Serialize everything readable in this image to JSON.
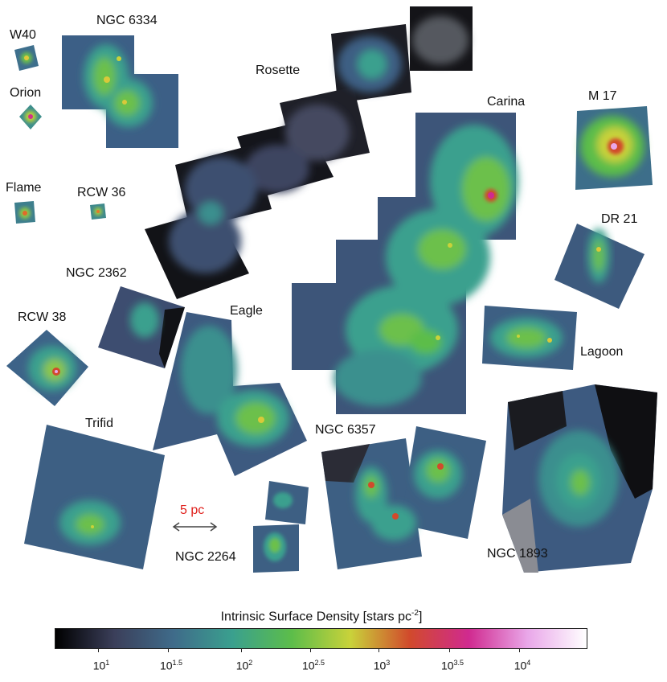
{
  "regions": {
    "w40": "W40",
    "ngc6334": "NGC 6334",
    "orion": "Orion",
    "rosette": "Rosette",
    "carina": "Carina",
    "m17": "M 17",
    "flame": "Flame",
    "rcw36": "RCW 36",
    "dr21": "DR 21",
    "ngc2362": "NGC 2362",
    "rcw38": "RCW 38",
    "eagle": "Eagle",
    "lagoon": "Lagoon",
    "trifid": "Trifid",
    "ngc6357": "NGC 6357",
    "ngc2264": "NGC 2264",
    "ngc1893": "NGC 1893"
  },
  "scale_bar": {
    "label": "5 pc",
    "color": "#e0201c"
  },
  "colorbar": {
    "title": "Intrinsic Surface Density [stars pc",
    "title_exponent": "-2",
    "title_close": "]",
    "ticks": [
      {
        "base": "10",
        "exp": "1"
      },
      {
        "base": "10",
        "exp": "1.5"
      },
      {
        "base": "10",
        "exp": "2"
      },
      {
        "base": "10",
        "exp": "2.5"
      },
      {
        "base": "10",
        "exp": "3"
      },
      {
        "base": "10",
        "exp": "3.5"
      },
      {
        "base": "10",
        "exp": "4"
      }
    ],
    "colormap": [
      "#000000",
      "#3b3f5a",
      "#3f6b8a",
      "#3aa08e",
      "#5cbd4a",
      "#c9d23a",
      "#d14a2c",
      "#d02a8f",
      "#e9a7e9",
      "#ffffff"
    ]
  }
}
